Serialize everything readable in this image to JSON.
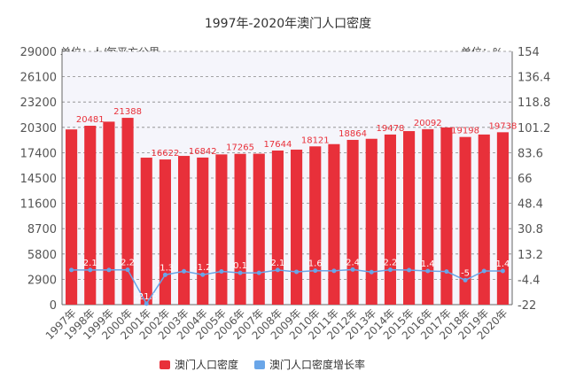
{
  "title": "1997年-2020年澳门人口密度",
  "left_unit": "单位：人/每平方公里",
  "right_unit": "单位：%",
  "colors": {
    "bar": "#e8303a",
    "line": "#6aa6e8",
    "plot_bg": "#f5f5fb",
    "grid": "#888888"
  },
  "chart_data": {
    "type": "bar",
    "title": "1997年-2020年澳门人口密度",
    "categories": [
      "1997年",
      "1998年",
      "1999年",
      "2000年",
      "2001年",
      "2002年",
      "2003年",
      "2004年",
      "2005年",
      "2006年",
      "2007年",
      "2008年",
      "2009年",
      "2010年",
      "2011年",
      "2012年",
      "2013年",
      "2014年",
      "2015年",
      "2016年",
      "2017年",
      "2018年",
      "2019年",
      "2020年"
    ],
    "y_ticks": [
      "0",
      "2900",
      "5800",
      "8700",
      "11600",
      "14500",
      "17400",
      "20300",
      "23200",
      "26100",
      "29000"
    ],
    "y2_ticks": [
      "-22",
      "-4.4",
      "13.2",
      "30.8",
      "48.4",
      "66",
      "83.6",
      "101.2",
      "118.8",
      "136.4",
      "154"
    ],
    "ylim": [
      0,
      29000
    ],
    "y2lim": [
      -22,
      154
    ],
    "series": [
      {
        "name": "澳门人口密度",
        "type": "bar",
        "values": [
          20060,
          20481,
          20950,
          21388,
          16830,
          16622,
          17030,
          16842,
          17200,
          17265,
          17280,
          17644,
          17750,
          18121,
          18380,
          18864,
          18990,
          19478,
          19870,
          20092,
          20290,
          19198,
          19480,
          19738
        ],
        "labels": [
          "",
          "20481",
          "",
          "21388",
          "",
          "16622",
          "",
          "16842",
          "",
          "17265",
          "",
          "17644",
          "",
          "18121",
          "",
          "18864",
          "",
          "19478",
          "",
          "20092",
          "",
          "19198",
          "",
          "19738"
        ]
      },
      {
        "name": "澳门人口密度增长率",
        "type": "line",
        "axis": "right",
        "values": [
          2.1,
          2.1,
          2.1,
          2.2,
          -21.3,
          -1.3,
          1.2,
          -1.2,
          1.1,
          0.1,
          0.1,
          2.1,
          0.8,
          1.6,
          1.5,
          2.4,
          0.6,
          2.2,
          2.0,
          1.4,
          1.0,
          -5.0,
          1.4,
          1.4
        ],
        "labels": [
          "",
          "2.1",
          "",
          "2.2",
          "-21.3",
          "-1.3",
          "",
          "-1.2",
          "",
          "0.1",
          "",
          "2.1",
          "",
          "1.6",
          "",
          "2.4",
          "",
          "2.2",
          "",
          "1.4",
          "",
          "-5",
          "",
          "1.4"
        ]
      }
    ],
    "legend_position": "bottom",
    "grid": true
  }
}
